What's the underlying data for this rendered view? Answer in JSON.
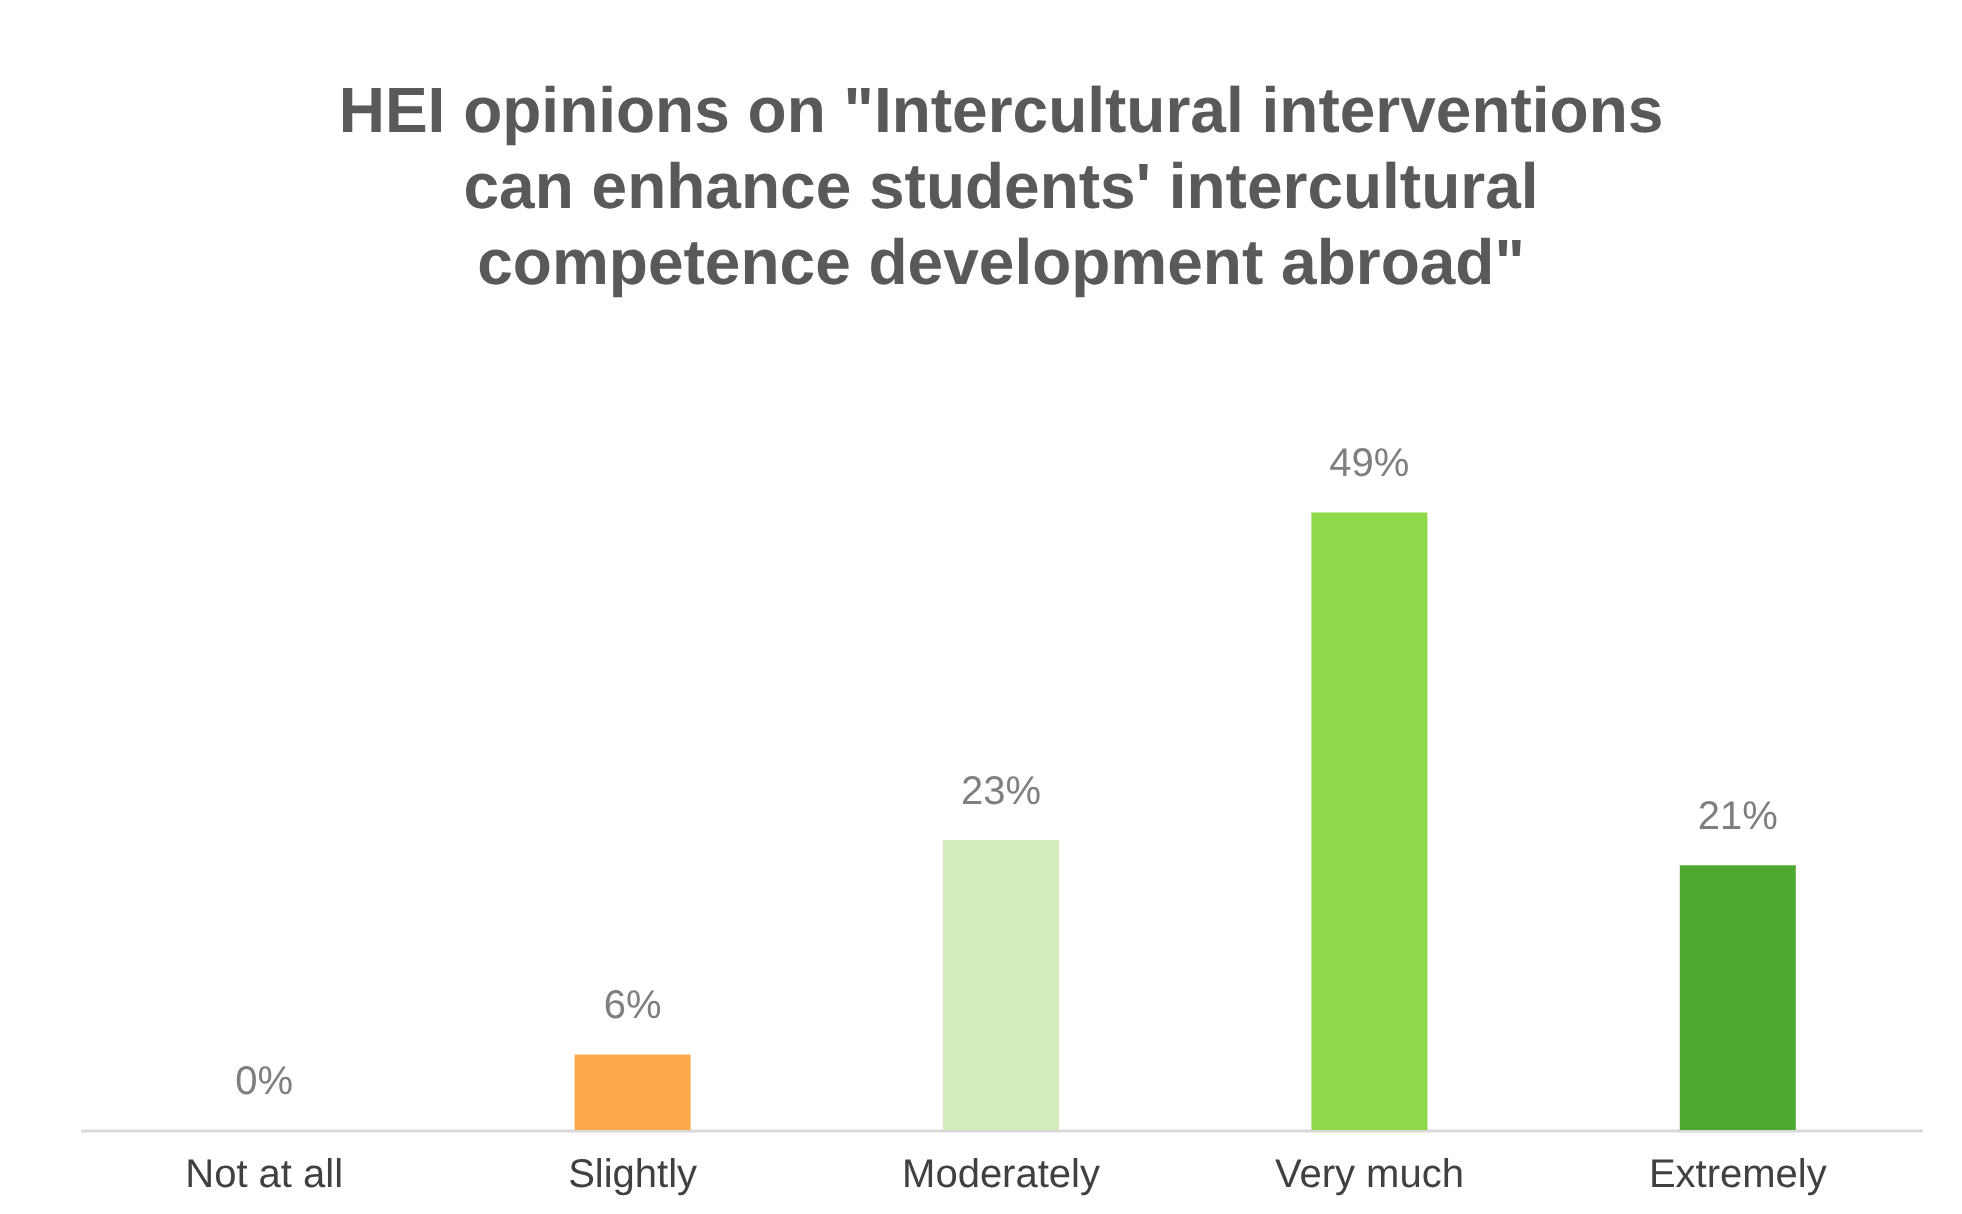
{
  "chart_data": {
    "type": "bar",
    "title": "HEI opinions on \"Intercultural interventions can enhance students' intercultural competence development abroad\"",
    "categories": [
      "Not at all",
      "Slightly",
      "Moderately",
      "Very much",
      "Extremely"
    ],
    "values": [
      0,
      6,
      23,
      49,
      21
    ],
    "colors": [
      "#e97132",
      "#ffa94d",
      "#d4edbc",
      "#8ed84a",
      "#4ea72e"
    ],
    "value_labels": [
      "0%",
      "6%",
      "23%",
      "49%",
      "21%"
    ],
    "grid": false,
    "legend": false
  }
}
